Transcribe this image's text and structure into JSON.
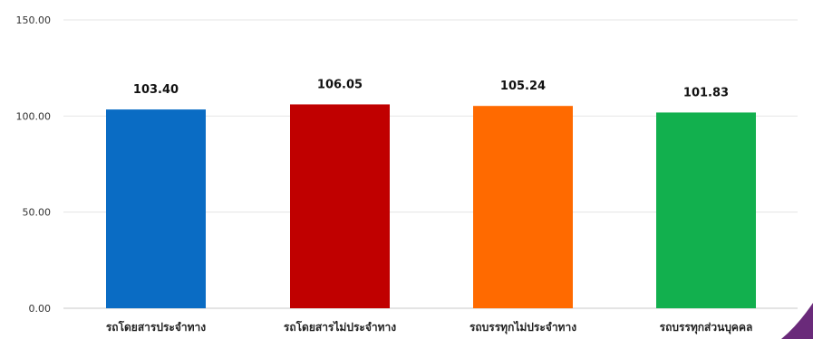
{
  "chart_data": {
    "type": "bar",
    "categories": [
      "รถโดยสารประจำทาง",
      "รถโดยสารไม่ประจำทาง",
      "รถบรรทุกไม่ประจำทาง",
      "รถบรรทุกส่วนบุคคล"
    ],
    "values": [
      103.4,
      106.05,
      105.24,
      101.83
    ],
    "value_labels": [
      "103.40",
      "106.05",
      "105.24",
      "101.83"
    ],
    "colors": [
      "#0a6cc4",
      "#c00000",
      "#ff6a00",
      "#12b04e"
    ],
    "ylim": [
      0,
      150
    ],
    "yticks": [
      "0.00",
      "50.00",
      "100.00",
      "150.00"
    ],
    "ytick_values": [
      0,
      50,
      100,
      150
    ],
    "grid": true,
    "title": "",
    "xlabel": "",
    "ylabel": ""
  },
  "decoration": {
    "corner_color": "#6a2a7a"
  }
}
